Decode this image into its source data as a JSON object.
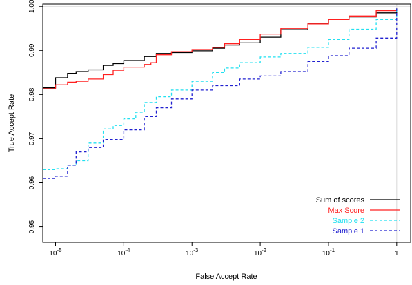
{
  "chart_data": {
    "type": "line",
    "title": "",
    "xlabel": "False Accept Rate",
    "ylabel": "True Accept Rate",
    "x_scale": "log",
    "xlim": [
      6.5e-06,
      1.6
    ],
    "ylim": [
      0.9465,
      1.0005
    ],
    "x_ticks": [
      {
        "value": 1e-05,
        "base": "10",
        "exp": "-5"
      },
      {
        "value": 0.0001,
        "base": "10",
        "exp": "-4"
      },
      {
        "value": 0.001,
        "base": "10",
        "exp": "-3"
      },
      {
        "value": 0.01,
        "base": "10",
        "exp": "-2"
      },
      {
        "value": 0.1,
        "base": "10",
        "exp": "-1"
      },
      {
        "value": 1,
        "base": "1",
        "exp": ""
      }
    ],
    "y_ticks": [
      {
        "value": 0.95,
        "label": "0.95"
      },
      {
        "value": 0.96,
        "label": "0.96"
      },
      {
        "value": 0.97,
        "label": "0.97"
      },
      {
        "value": 0.98,
        "label": "0.98"
      },
      {
        "value": 0.99,
        "label": "0.99"
      },
      {
        "value": 1.0,
        "label": "1.00"
      }
    ],
    "grid": {
      "x_at": 1,
      "y_at": 1.0
    },
    "legend_position": "bottom-right",
    "series": [
      {
        "name": "Sum of scores",
        "color": "#000000",
        "dash": "solid",
        "points": [
          [
            6.5e-06,
            0.9815
          ],
          [
            1e-05,
            0.9838
          ],
          [
            1.5e-05,
            0.9848
          ],
          [
            2e-05,
            0.9852
          ],
          [
            3e-05,
            0.9856
          ],
          [
            5e-05,
            0.9866
          ],
          [
            7e-05,
            0.987
          ],
          [
            0.0001,
            0.9877
          ],
          [
            0.0002,
            0.9886
          ],
          [
            0.0003,
            0.9893
          ],
          [
            0.0005,
            0.9895
          ],
          [
            0.001,
            0.9899
          ],
          [
            0.002,
            0.9905
          ],
          [
            0.003,
            0.9912
          ],
          [
            0.005,
            0.9917
          ],
          [
            0.01,
            0.993
          ],
          [
            0.02,
            0.9947
          ],
          [
            0.05,
            0.996
          ],
          [
            0.1,
            0.997
          ],
          [
            0.2,
            0.9976
          ],
          [
            0.5,
            0.9985
          ],
          [
            1,
            0.9995
          ]
        ]
      },
      {
        "name": "Max Score",
        "color": "#ff2020",
        "dash": "solid",
        "points": [
          [
            6.5e-06,
            0.9813
          ],
          [
            1e-05,
            0.9822
          ],
          [
            1.5e-05,
            0.9828
          ],
          [
            2e-05,
            0.983
          ],
          [
            3e-05,
            0.9835
          ],
          [
            5e-05,
            0.9845
          ],
          [
            7e-05,
            0.9855
          ],
          [
            0.0001,
            0.9862
          ],
          [
            0.0002,
            0.9868
          ],
          [
            0.00025,
            0.9872
          ],
          [
            0.0003,
            0.989
          ],
          [
            0.0005,
            0.9897
          ],
          [
            0.001,
            0.9902
          ],
          [
            0.002,
            0.9907
          ],
          [
            0.003,
            0.9915
          ],
          [
            0.005,
            0.9925
          ],
          [
            0.01,
            0.9937
          ],
          [
            0.02,
            0.995
          ],
          [
            0.05,
            0.996
          ],
          [
            0.1,
            0.997
          ],
          [
            0.2,
            0.9978
          ],
          [
            0.5,
            0.999
          ],
          [
            1,
            0.999
          ]
        ]
      },
      {
        "name": "Sample 2",
        "color": "#22e0f0",
        "dash": "dashed",
        "points": [
          [
            6.5e-06,
            0.963
          ],
          [
            1e-05,
            0.9632
          ],
          [
            1.5e-05,
            0.964
          ],
          [
            2e-05,
            0.965
          ],
          [
            3e-05,
            0.969
          ],
          [
            5e-05,
            0.9722
          ],
          [
            7e-05,
            0.973
          ],
          [
            0.0001,
            0.9745
          ],
          [
            0.00015,
            0.976
          ],
          [
            0.0002,
            0.9782
          ],
          [
            0.0003,
            0.9795
          ],
          [
            0.0005,
            0.981
          ],
          [
            0.001,
            0.983
          ],
          [
            0.002,
            0.985
          ],
          [
            0.003,
            0.986
          ],
          [
            0.005,
            0.9872
          ],
          [
            0.01,
            0.9885
          ],
          [
            0.02,
            0.9893
          ],
          [
            0.05,
            0.9907
          ],
          [
            0.1,
            0.9925
          ],
          [
            0.2,
            0.9948
          ],
          [
            0.5,
            0.997
          ],
          [
            1,
            0.9995
          ]
        ]
      },
      {
        "name": "Sample 1",
        "color": "#2020d0",
        "dash": "dashed",
        "points": [
          [
            6.5e-06,
            0.961
          ],
          [
            1e-05,
            0.9615
          ],
          [
            1.5e-05,
            0.964
          ],
          [
            2e-05,
            0.967
          ],
          [
            3e-05,
            0.968
          ],
          [
            5e-05,
            0.9698
          ],
          [
            0.0001,
            0.972
          ],
          [
            0.0002,
            0.975
          ],
          [
            0.0003,
            0.977
          ],
          [
            0.0005,
            0.979
          ],
          [
            0.001,
            0.981
          ],
          [
            0.002,
            0.982
          ],
          [
            0.005,
            0.9835
          ],
          [
            0.01,
            0.9842
          ],
          [
            0.02,
            0.9852
          ],
          [
            0.05,
            0.9875
          ],
          [
            0.1,
            0.9888
          ],
          [
            0.2,
            0.9905
          ],
          [
            0.5,
            0.9928
          ],
          [
            1,
            0.9995
          ]
        ]
      }
    ]
  }
}
